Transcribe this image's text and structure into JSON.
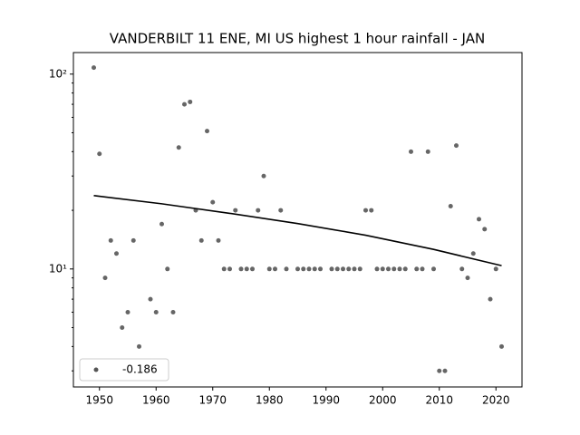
{
  "chart_data": {
    "type": "scatter",
    "title": "VANDERBILT 11 ENE, MI US highest 1 hour rainfall - JAN",
    "x": [
      1949,
      1950,
      1951,
      1952,
      1953,
      1954,
      1955,
      1956,
      1957,
      1959,
      1960,
      1961,
      1962,
      1963,
      1964,
      1965,
      1966,
      1967,
      1968,
      1969,
      1970,
      1971,
      1972,
      1973,
      1974,
      1975,
      1976,
      1977,
      1978,
      1979,
      1980,
      1981,
      1982,
      1983,
      1985,
      1986,
      1987,
      1988,
      1989,
      1991,
      1992,
      1993,
      1994,
      1995,
      1996,
      1997,
      1998,
      1999,
      2000,
      2001,
      2002,
      2003,
      2004,
      2005,
      2006,
      2007,
      2008,
      2009,
      2010,
      2011,
      2012,
      2013,
      2014,
      2015,
      2016,
      2017,
      2018,
      2019,
      2020,
      2021
    ],
    "series": [
      {
        "name": "-0.186",
        "color": "#555555",
        "values": [
          108,
          39,
          9,
          14,
          12,
          5,
          6,
          14,
          4,
          7,
          6,
          17,
          10,
          6,
          42,
          70,
          72,
          20,
          14,
          51,
          22,
          14,
          10,
          10,
          20,
          10,
          10,
          10,
          20,
          30,
          10,
          10,
          20,
          10,
          10,
          10,
          10,
          10,
          10,
          10,
          10,
          10,
          10,
          10,
          10,
          20,
          20,
          10,
          10,
          10,
          10,
          10,
          10,
          40,
          10,
          10,
          40,
          10,
          3,
          3,
          21,
          43,
          10,
          9,
          12,
          18,
          16,
          7,
          10,
          4
        ]
      }
    ],
    "trend": {
      "color": "#000000",
      "x": [
        1949,
        1961,
        1973,
        1985,
        1997,
        2009,
        2021
      ],
      "values": [
        23.8,
        21.6,
        19.3,
        17.1,
        14.9,
        12.6,
        10.4
      ]
    },
    "xlim": [
      1945.4,
      2024.6
    ],
    "xticks": [
      1950,
      1960,
      1970,
      1980,
      1990,
      2000,
      2010,
      2020
    ],
    "ylim": [
      2.48,
      129
    ],
    "log_y": true,
    "yticks": [
      {
        "value": 10,
        "label": "10¹"
      },
      {
        "value": 100,
        "label": "10²"
      }
    ],
    "yminorticks": [
      3,
      4,
      5,
      6,
      7,
      8,
      9,
      20,
      30,
      40,
      50,
      60,
      70,
      80,
      90
    ],
    "legend": "lower left"
  }
}
